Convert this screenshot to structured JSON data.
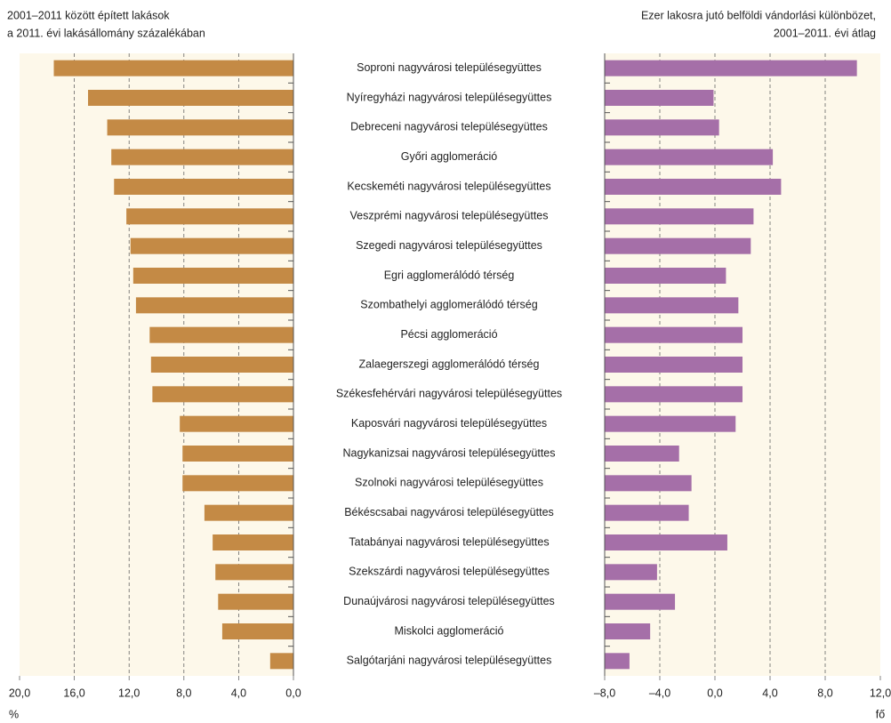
{
  "chart_data": [
    {
      "type": "bar",
      "orientation": "horizontal",
      "title": [
        "2001–2011 között épített lakások",
        "a 2011. évi lakásállomány százalékában"
      ],
      "x_unit": "%",
      "categories": [
        "Soproni nagyvárosi településegyüttes",
        "Nyíregyházi nagyvárosi településegyüttes",
        "Debreceni nagyvárosi településegyüttes",
        "Győri agglomeráció",
        "Kecskeméti nagyvárosi településegyüttes",
        "Veszprémi nagyvárosi településegyüttes",
        "Szegedi nagyvárosi településegyüttes",
        "Egri agglomerálódó térség",
        "Szombathelyi agglomerálódó térség",
        "Pécsi agglomeráció",
        "Zalaegerszegi agglomerálódó térség",
        "Székesfehérvári nagyvárosi településegyüttes",
        "Kaposvári nagyvárosi településegyüttes",
        "Nagykanizsai nagyvárosi településegyüttes",
        "Szolnoki nagyvárosi településegyüttes",
        "Békéscsabai nagyvárosi településegyüttes",
        "Tatabányai nagyvárosi településegyüttes",
        "Szekszárdi nagyvárosi településegyüttes",
        "Dunaújvárosi nagyvárosi településegyüttes",
        "Miskolci agglomeráció",
        "Salgótarjáni nagyvárosi településegyüttes"
      ],
      "values": [
        17.5,
        15.0,
        13.6,
        13.3,
        13.1,
        12.2,
        11.9,
        11.7,
        11.5,
        10.5,
        10.4,
        10.3,
        8.3,
        8.1,
        8.1,
        6.5,
        5.9,
        5.7,
        5.5,
        5.2,
        1.7
      ],
      "color": "#c48a45",
      "xlim": [
        20,
        0
      ],
      "xticks": [
        {
          "value": 20,
          "label": "20,0"
        },
        {
          "value": 16,
          "label": "16,0"
        },
        {
          "value": 12,
          "label": "12,0"
        },
        {
          "value": 8,
          "label": "8,0"
        },
        {
          "value": 4,
          "label": "4,0"
        },
        {
          "value": 0,
          "label": "0,0"
        }
      ],
      "grid": true
    },
    {
      "type": "bar",
      "orientation": "horizontal",
      "title": [
        "Ezer lakosra jutó belföldi vándorlási különbözet,",
        "2001–2011. évi átlag"
      ],
      "x_unit": "fő",
      "values": [
        10.3,
        -0.1,
        0.3,
        4.2,
        4.8,
        2.8,
        2.6,
        0.8,
        1.7,
        2.0,
        2.0,
        2.0,
        1.5,
        -2.6,
        -1.7,
        -1.9,
        0.9,
        -4.2,
        -2.9,
        -4.7,
        -6.2
      ],
      "color": "#a56fa8",
      "xlim": [
        -8,
        12
      ],
      "xticks": [
        {
          "value": -8,
          "label": "–8,0"
        },
        {
          "value": -4,
          "label": "–4,0"
        },
        {
          "value": 0,
          "label": "0,0"
        },
        {
          "value": 4,
          "label": "4,0"
        },
        {
          "value": 8,
          "label": "8,0"
        },
        {
          "value": 12,
          "label": "12,0"
        }
      ],
      "grid": true
    }
  ]
}
